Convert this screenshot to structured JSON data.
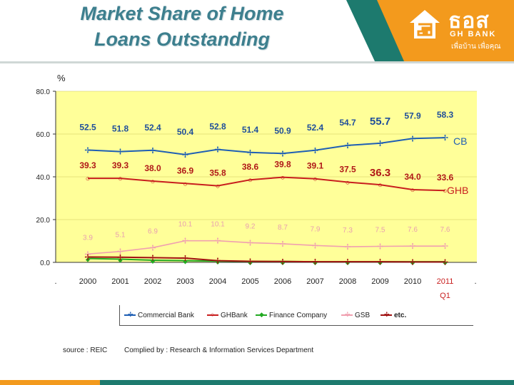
{
  "header": {
    "title_line1": "Market Share of Home",
    "title_line2": "Loans Outstanding"
  },
  "logo": {
    "thai": "ธอส",
    "bank": "GH BANK",
    "slogan": "เพื่อบ้าน เพื่อคุณ"
  },
  "colors": {
    "header_bg": "#1d7a6e",
    "logo_bg": "#f39a1d",
    "plot_bg": "#ffff99",
    "cb": "#1f5fb4",
    "ghb": "#c81e1e",
    "finance": "#22aa22",
    "gsb": "#f0a0b0",
    "etc": "#a01010"
  },
  "chart_data": {
    "type": "line",
    "ylabel": "%",
    "ylim": [
      0,
      80
    ],
    "yticks": [
      "0.0",
      "20.0",
      "40.0",
      "60.0",
      "80.0"
    ],
    "categories": [
      "2000",
      "2001",
      "2002",
      "2003",
      "2004",
      "2005",
      "2006",
      "2007",
      "2008",
      "2009",
      "2010",
      "2011"
    ],
    "q1_label": "Q1",
    "edge_label": ".",
    "series": [
      {
        "name": "Commercial Bank",
        "key": "cb",
        "end_label": "CB",
        "marker": "✢",
        "values": [
          52.5,
          51.8,
          52.4,
          50.4,
          52.8,
          51.4,
          50.9,
          52.4,
          54.7,
          55.7,
          57.9,
          58.3
        ],
        "labels": [
          "52.5",
          "51.8",
          "52.4",
          "50.4",
          "52.8",
          "51.4",
          "50.9",
          "52.4",
          "54.7",
          "55.7",
          "57.9",
          "58.3"
        ]
      },
      {
        "name": "GHBank",
        "key": "ghb",
        "end_label": "GHB",
        "marker": "○",
        "values": [
          39.3,
          39.3,
          38.0,
          36.9,
          35.8,
          38.6,
          39.8,
          39.1,
          37.5,
          36.3,
          34.0,
          33.6
        ],
        "labels": [
          "39.3",
          "39.3",
          "38.0",
          "36.9",
          "35.8",
          "38.6",
          "39.8",
          "39.1",
          "37.5",
          "36.3",
          "34.0",
          "33.6"
        ]
      },
      {
        "name": "Finance Company",
        "key": "finance",
        "end_label": "",
        "marker": "◆",
        "values": [
          1.8,
          1.5,
          1.0,
          0.8,
          0.6,
          0.4,
          0.4,
          0.3,
          0.3,
          0.3,
          0.3,
          0.3
        ],
        "labels": []
      },
      {
        "name": "GSB",
        "key": "gsb",
        "end_label": "",
        "marker": "✢",
        "values": [
          3.9,
          5.1,
          6.9,
          10.1,
          10.1,
          9.2,
          8.7,
          7.9,
          7.3,
          7.5,
          7.6,
          7.6
        ],
        "labels": [
          "3.9",
          "5.1",
          "6.9",
          "10.1",
          "10.1",
          "9.2",
          "8.7",
          "7.9",
          "7.3",
          "7.5",
          "7.6",
          "7.6"
        ]
      },
      {
        "name": "etc.",
        "key": "etc",
        "end_label": "",
        "marker": "✢",
        "values": [
          2.5,
          2.4,
          2.2,
          2.0,
          0.8,
          0.5,
          0.4,
          0.3,
          0.3,
          0.3,
          0.2,
          0.2
        ],
        "labels": []
      }
    ]
  },
  "footer": {
    "source": "source : REIC",
    "compiled": "Complied by : Research & Information Services Department"
  }
}
